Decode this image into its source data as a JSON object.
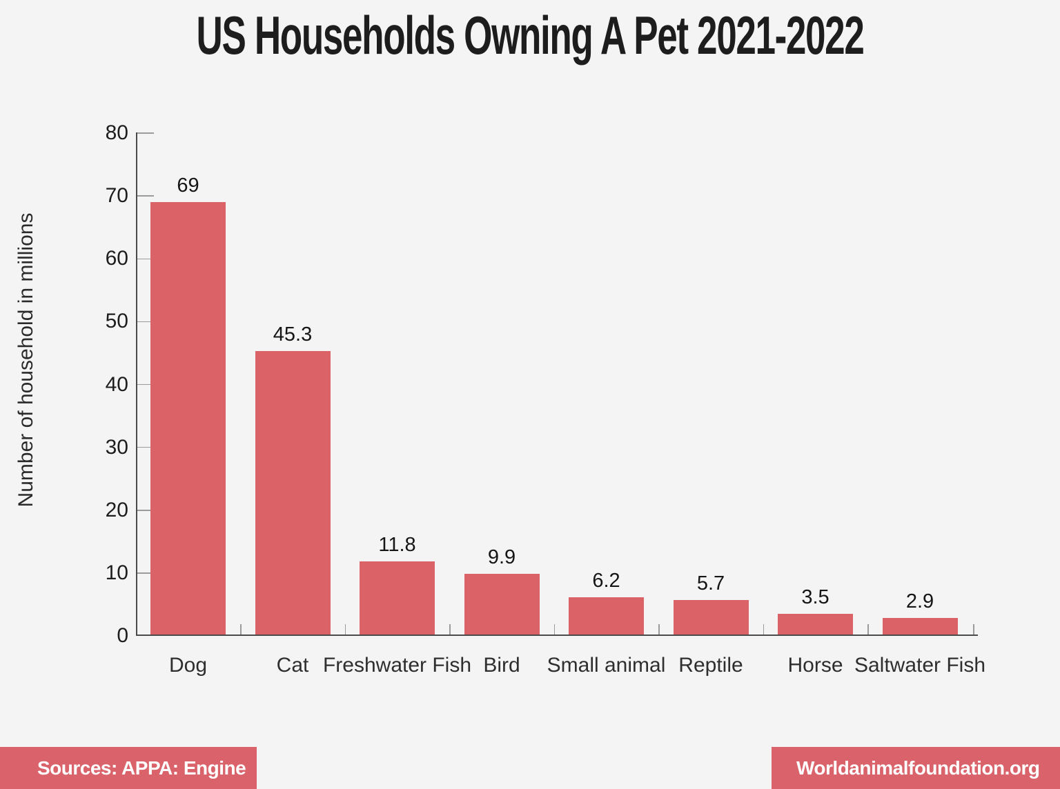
{
  "title": "US Households Owning A Pet 2021-2022",
  "chart_data": {
    "type": "bar",
    "title": "US Households Owning A Pet 2021-2022",
    "xlabel": "",
    "ylabel": "Number of household in millions",
    "categories": [
      "Dog",
      "Cat",
      "Freshwater Fish",
      "Bird",
      "Small animal",
      "Reptile",
      "Horse",
      "Saltwater Fish"
    ],
    "values": [
      69,
      45.3,
      11.8,
      9.9,
      6.2,
      5.7,
      3.5,
      2.9
    ],
    "value_labels": [
      "69",
      "45.3",
      "11.8",
      "9.9",
      "6.2",
      "5.7",
      "3.5",
      "2.9"
    ],
    "ylim": [
      0,
      80
    ],
    "yticks": [
      0,
      10,
      20,
      30,
      40,
      50,
      60,
      70,
      80
    ],
    "grid": false,
    "legend": false,
    "bar_color": "#db6367"
  },
  "footer": {
    "source_label": "Sources: APPA: Engine",
    "site_label": "Worldanimalfoundation.org",
    "box_color": "#d9626b",
    "text_color": "#ffffff"
  },
  "colors": {
    "background": "#f5f4f4",
    "axis": "#4a4a4a",
    "tick": "#9b9b9b",
    "text": "#1d1d1d"
  }
}
